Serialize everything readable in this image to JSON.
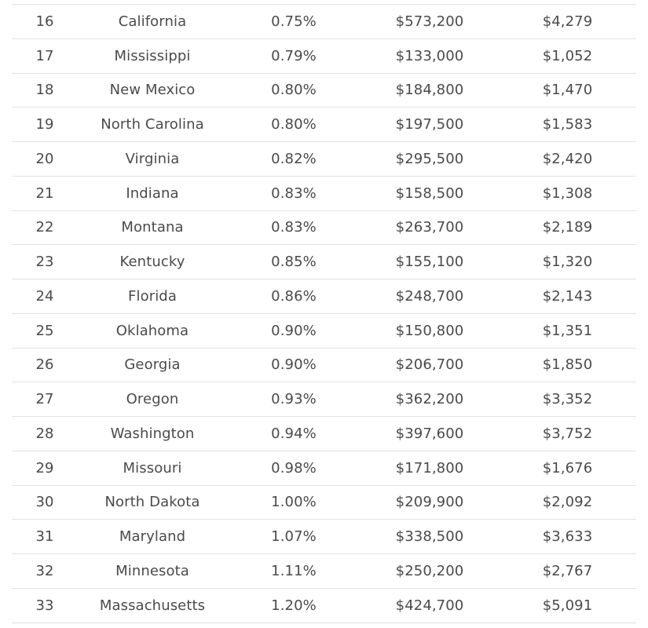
{
  "table": {
    "rows": [
      {
        "rank": "16",
        "state": "California",
        "rate": "0.75%",
        "home_value": "$573,200",
        "tax": "$4,279"
      },
      {
        "rank": "17",
        "state": "Mississippi",
        "rate": "0.79%",
        "home_value": "$133,000",
        "tax": "$1,052"
      },
      {
        "rank": "18",
        "state": "New Mexico",
        "rate": "0.80%",
        "home_value": "$184,800",
        "tax": "$1,470"
      },
      {
        "rank": "19",
        "state": "North Carolina",
        "rate": "0.80%",
        "home_value": "$197,500",
        "tax": "$1,583"
      },
      {
        "rank": "20",
        "state": "Virginia",
        "rate": "0.82%",
        "home_value": "$295,500",
        "tax": "$2,420"
      },
      {
        "rank": "21",
        "state": "Indiana",
        "rate": "0.83%",
        "home_value": "$158,500",
        "tax": "$1,308"
      },
      {
        "rank": "22",
        "state": "Montana",
        "rate": "0.83%",
        "home_value": "$263,700",
        "tax": "$2,189"
      },
      {
        "rank": "23",
        "state": "Kentucky",
        "rate": "0.85%",
        "home_value": "$155,100",
        "tax": "$1,320"
      },
      {
        "rank": "24",
        "state": "Florida",
        "rate": "0.86%",
        "home_value": "$248,700",
        "tax": "$2,143"
      },
      {
        "rank": "25",
        "state": "Oklahoma",
        "rate": "0.90%",
        "home_value": "$150,800",
        "tax": "$1,351"
      },
      {
        "rank": "26",
        "state": "Georgia",
        "rate": "0.90%",
        "home_value": "$206,700",
        "tax": "$1,850"
      },
      {
        "rank": "27",
        "state": "Oregon",
        "rate": "0.93%",
        "home_value": "$362,200",
        "tax": "$3,352"
      },
      {
        "rank": "28",
        "state": "Washington",
        "rate": "0.94%",
        "home_value": "$397,600",
        "tax": "$3,752"
      },
      {
        "rank": "29",
        "state": "Missouri",
        "rate": "0.98%",
        "home_value": "$171,800",
        "tax": "$1,676"
      },
      {
        "rank": "30",
        "state": "North Dakota",
        "rate": "1.00%",
        "home_value": "$209,900",
        "tax": "$2,092"
      },
      {
        "rank": "31",
        "state": "Maryland",
        "rate": "1.07%",
        "home_value": "$338,500",
        "tax": "$3,633"
      },
      {
        "rank": "32",
        "state": "Minnesota",
        "rate": "1.11%",
        "home_value": "$250,200",
        "tax": "$2,767"
      },
      {
        "rank": "33",
        "state": "Massachusetts",
        "rate": "1.20%",
        "home_value": "$424,700",
        "tax": "$5,091"
      }
    ]
  },
  "colors": {
    "text": "#4a4a4a",
    "divider": "#e2e2e2",
    "background": "#ffffff"
  }
}
